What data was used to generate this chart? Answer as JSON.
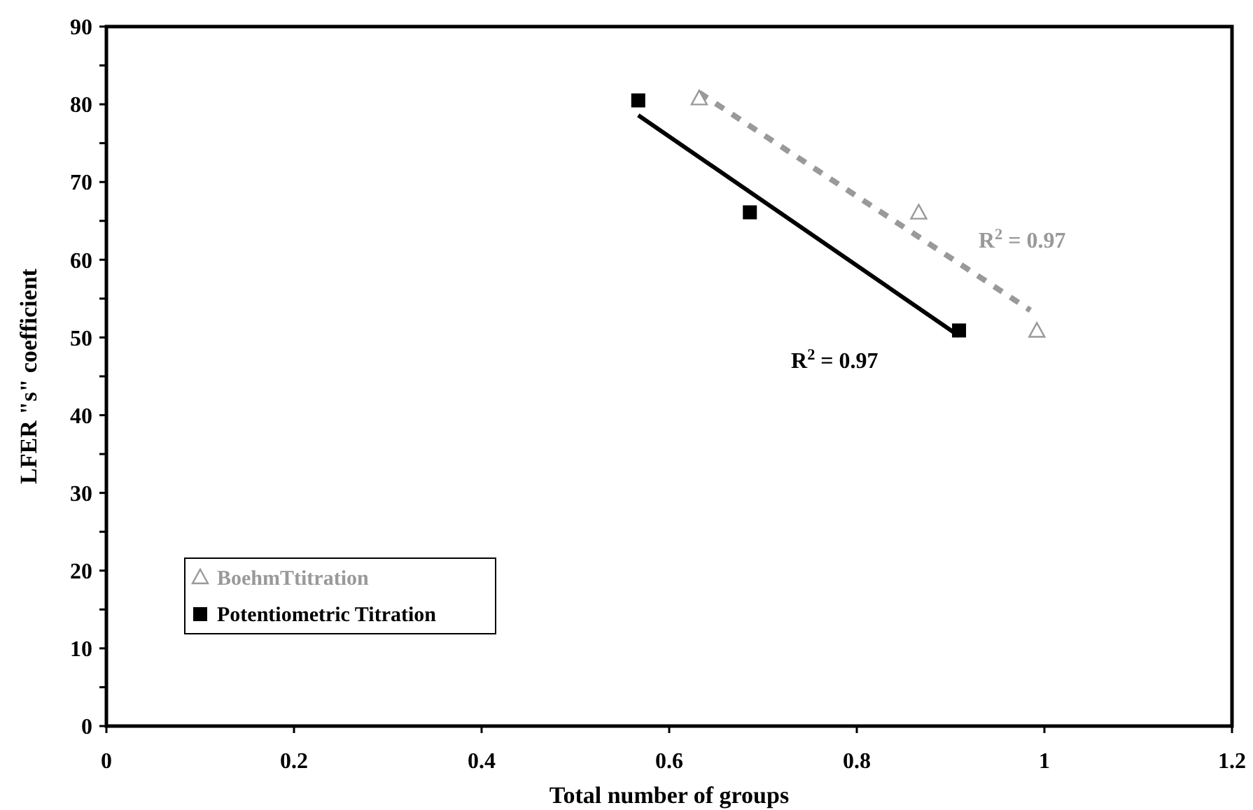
{
  "chart_data": {
    "type": "scatter",
    "xlabel": "Total number of groups",
    "ylabel": "LFER \"s\" coefficient",
    "xlim": [
      0,
      1.2
    ],
    "ylim": [
      0,
      90
    ],
    "xticks": [
      0,
      0.2,
      0.4,
      0.6,
      0.8,
      1,
      1.2
    ],
    "yticks": [
      0,
      {
        "value": 5,
        "label": null
      },
      10,
      {
        "value": 15,
        "label": null
      },
      20,
      {
        "value": 25,
        "label": null
      },
      30,
      {
        "value": 35,
        "label": null
      },
      40,
      {
        "value": 45,
        "label": null
      },
      50,
      {
        "value": 55,
        "label": null
      },
      60,
      {
        "value": 65,
        "label": null
      },
      70,
      {
        "value": 75,
        "label": null
      },
      80,
      {
        "value": 85,
        "label": null
      },
      90
    ],
    "grid": false,
    "legend": "bottom left",
    "series": [
      {
        "name": "BoehmTtitration",
        "marker": "triangle",
        "color": "#999999",
        "x": [
          0.632,
          0.866,
          0.992
        ],
        "values": [
          80.7,
          66.0,
          50.8
        ]
      },
      {
        "name": "Potentiometric Titration",
        "marker": "square",
        "color": "#000000",
        "x": [
          0.567,
          0.686,
          0.909
        ],
        "values": [
          80.5,
          66.1,
          50.9
        ]
      },
      {
        "type": "line",
        "line_style": "dashed",
        "color": "#999999",
        "x": [
          0.632,
          0.985
        ],
        "values": [
          81.5,
          53.5
        ]
      },
      {
        "type": "line",
        "line_style": "solid",
        "color": "#000000",
        "x": [
          0.567,
          0.909
        ],
        "values": [
          78.6,
          50.2
        ]
      }
    ],
    "annotations": [
      "R$^{2}$ = 0.97",
      "R$^{2}$ = 0.97"
    ]
  }
}
